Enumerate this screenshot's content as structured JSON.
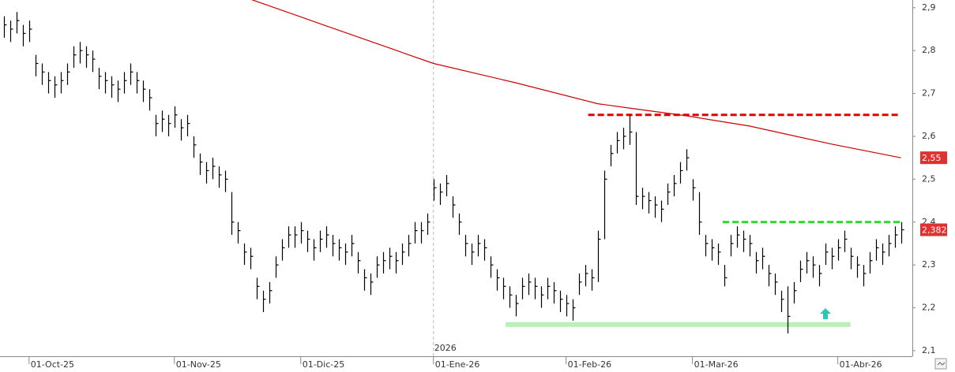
{
  "chart_data": {
    "type": "hlc",
    "color": "#000000",
    "xlim": [
      -0.6,
      143.8
    ],
    "ylim": [
      2.087,
      2.918
    ],
    "yticks": [
      {
        "value": 2.1,
        "label": "2,1"
      },
      {
        "value": 2.2,
        "label": "2,2"
      },
      {
        "value": 2.3,
        "label": "2,3"
      },
      {
        "value": 2.4,
        "label": "2,4"
      },
      {
        "value": 2.5,
        "label": "2,5"
      },
      {
        "value": 2.6,
        "label": "2,6"
      },
      {
        "value": 2.7,
        "label": "2,7"
      },
      {
        "value": 2.8,
        "label": "2,8"
      },
      {
        "value": 2.9,
        "label": "2,9"
      }
    ],
    "xticks": [
      {
        "value": 4,
        "label": "01-Oct-25"
      },
      {
        "value": 27,
        "label": "01-Nov-25"
      },
      {
        "value": 47,
        "label": "01-Dic-25"
      },
      {
        "value": 68,
        "label": "01-Ene-26"
      },
      {
        "value": 89,
        "label": "01-Feb-26"
      },
      {
        "value": 109,
        "label": "01-Mar-26"
      },
      {
        "value": 132,
        "label": "01-Abr-26"
      }
    ],
    "high": [
      2.88,
      2.87,
      2.89,
      2.86,
      2.87,
      2.79,
      2.77,
      2.75,
      2.74,
      2.75,
      2.77,
      2.81,
      2.82,
      2.81,
      2.8,
      2.76,
      2.75,
      2.74,
      2.73,
      2.75,
      2.77,
      2.75,
      2.73,
      2.71,
      2.65,
      2.66,
      2.65,
      2.67,
      2.64,
      2.65,
      2.6,
      2.56,
      2.54,
      2.55,
      2.53,
      2.52,
      2.47,
      2.4,
      2.35,
      2.34,
      2.27,
      2.24,
      2.26,
      2.32,
      2.36,
      2.39,
      2.39,
      2.4,
      2.38,
      2.36,
      2.38,
      2.39,
      2.37,
      2.36,
      2.35,
      2.37,
      2.33,
      2.29,
      2.28,
      2.32,
      2.33,
      2.34,
      2.33,
      2.35,
      2.37,
      2.4,
      2.4,
      2.42,
      2.5,
      2.49,
      2.51,
      2.46,
      2.42,
      2.37,
      2.35,
      2.37,
      2.36,
      2.32,
      2.29,
      2.27,
      2.25,
      2.23,
      2.27,
      2.28,
      2.27,
      2.25,
      2.27,
      2.26,
      2.24,
      2.23,
      2.22,
      2.28,
      2.3,
      2.29,
      2.38,
      2.52,
      2.58,
      2.61,
      2.62,
      2.65,
      2.61,
      2.48,
      2.47,
      2.46,
      2.45,
      2.49,
      2.51,
      2.54,
      2.57,
      2.5,
      2.47,
      2.37,
      2.36,
      2.35,
      2.3,
      2.37,
      2.39,
      2.38,
      2.37,
      2.33,
      2.34,
      2.3,
      2.28,
      2.24,
      2.25,
      2.26,
      2.31,
      2.33,
      2.32,
      2.3,
      2.35,
      2.34,
      2.36,
      2.38,
      2.34,
      2.32,
      2.3,
      2.33,
      2.36,
      2.35,
      2.37,
      2.39,
      2.4
    ],
    "low": [
      2.83,
      2.82,
      2.84,
      2.81,
      2.82,
      2.74,
      2.72,
      2.7,
      2.69,
      2.7,
      2.72,
      2.76,
      2.77,
      2.76,
      2.75,
      2.71,
      2.7,
      2.69,
      2.68,
      2.7,
      2.72,
      2.7,
      2.68,
      2.66,
      2.6,
      2.61,
      2.6,
      2.62,
      2.59,
      2.6,
      2.55,
      2.51,
      2.49,
      2.5,
      2.48,
      2.47,
      2.37,
      2.35,
      2.3,
      2.29,
      2.22,
      2.19,
      2.21,
      2.27,
      2.31,
      2.34,
      2.34,
      2.35,
      2.33,
      2.31,
      2.33,
      2.34,
      2.32,
      2.31,
      2.3,
      2.32,
      2.28,
      2.24,
      2.23,
      2.27,
      2.28,
      2.29,
      2.28,
      2.3,
      2.32,
      2.35,
      2.35,
      2.37,
      2.45,
      2.44,
      2.46,
      2.41,
      2.37,
      2.32,
      2.3,
      2.32,
      2.31,
      2.27,
      2.24,
      2.22,
      2.2,
      2.18,
      2.22,
      2.23,
      2.22,
      2.2,
      2.22,
      2.21,
      2.19,
      2.18,
      2.17,
      2.23,
      2.25,
      2.24,
      2.26,
      2.36,
      2.53,
      2.56,
      2.57,
      2.58,
      2.44,
      2.43,
      2.42,
      2.41,
      2.4,
      2.44,
      2.46,
      2.49,
      2.52,
      2.45,
      2.37,
      2.32,
      2.31,
      2.3,
      2.25,
      2.32,
      2.34,
      2.33,
      2.32,
      2.28,
      2.29,
      2.25,
      2.23,
      2.19,
      2.14,
      2.21,
      2.26,
      2.28,
      2.27,
      2.25,
      2.3,
      2.29,
      2.31,
      2.33,
      2.29,
      2.27,
      2.25,
      2.28,
      2.31,
      2.3,
      2.32,
      2.34,
      2.35
    ],
    "close": [
      2.86,
      2.85,
      2.87,
      2.84,
      2.85,
      2.77,
      2.75,
      2.73,
      2.72,
      2.73,
      2.75,
      2.79,
      2.8,
      2.79,
      2.78,
      2.74,
      2.73,
      2.72,
      2.71,
      2.73,
      2.75,
      2.73,
      2.71,
      2.69,
      2.63,
      2.64,
      2.63,
      2.65,
      2.62,
      2.63,
      2.58,
      2.54,
      2.52,
      2.53,
      2.51,
      2.5,
      2.4,
      2.38,
      2.33,
      2.32,
      2.25,
      2.22,
      2.24,
      2.3,
      2.34,
      2.37,
      2.37,
      2.38,
      2.36,
      2.34,
      2.36,
      2.37,
      2.35,
      2.34,
      2.33,
      2.35,
      2.31,
      2.27,
      2.26,
      2.3,
      2.31,
      2.32,
      2.31,
      2.33,
      2.35,
      2.38,
      2.38,
      2.4,
      2.48,
      2.47,
      2.49,
      2.44,
      2.4,
      2.35,
      2.33,
      2.35,
      2.34,
      2.3,
      2.27,
      2.25,
      2.23,
      2.21,
      2.25,
      2.26,
      2.25,
      2.23,
      2.25,
      2.24,
      2.22,
      2.21,
      2.2,
      2.26,
      2.28,
      2.27,
      2.36,
      2.5,
      2.56,
      2.59,
      2.6,
      2.61,
      2.46,
      2.46,
      2.45,
      2.44,
      2.43,
      2.47,
      2.49,
      2.52,
      2.55,
      2.48,
      2.4,
      2.35,
      2.34,
      2.33,
      2.27,
      2.35,
      2.37,
      2.36,
      2.35,
      2.31,
      2.32,
      2.28,
      2.26,
      2.22,
      2.18,
      2.24,
      2.29,
      2.31,
      2.3,
      2.28,
      2.33,
      2.32,
      2.34,
      2.36,
      2.32,
      2.3,
      2.28,
      2.31,
      2.34,
      2.33,
      2.35,
      2.37,
      2.382
    ],
    "moving_average": {
      "color": "#cc0000",
      "x": [
        39,
        50,
        68,
        81,
        94,
        99,
        108,
        118,
        131,
        142
      ],
      "values": [
        2.92,
        2.863,
        2.77,
        2.725,
        2.676,
        2.666,
        2.648,
        2.624,
        2.582,
        2.55
      ]
    },
    "levels": [
      {
        "value": 2.65,
        "from": 92.5,
        "to": 141.5,
        "color": "#e00000",
        "style": "dashed"
      },
      {
        "value": 2.4,
        "from": 113.8,
        "to": 141.9,
        "color": "#22dd22",
        "style": "dashed"
      },
      {
        "value": 2.161,
        "from": 79.4,
        "to": 134,
        "color": "#b8f0b8",
        "style": "solid"
      }
    ],
    "price_tags": [
      {
        "value": 2.55,
        "label": "2,55",
        "color": "#e03030"
      },
      {
        "value": 2.382,
        "label": "2,382",
        "color": "#e03030"
      }
    ],
    "separator": {
      "x": 68,
      "label": "2026"
    }
  }
}
